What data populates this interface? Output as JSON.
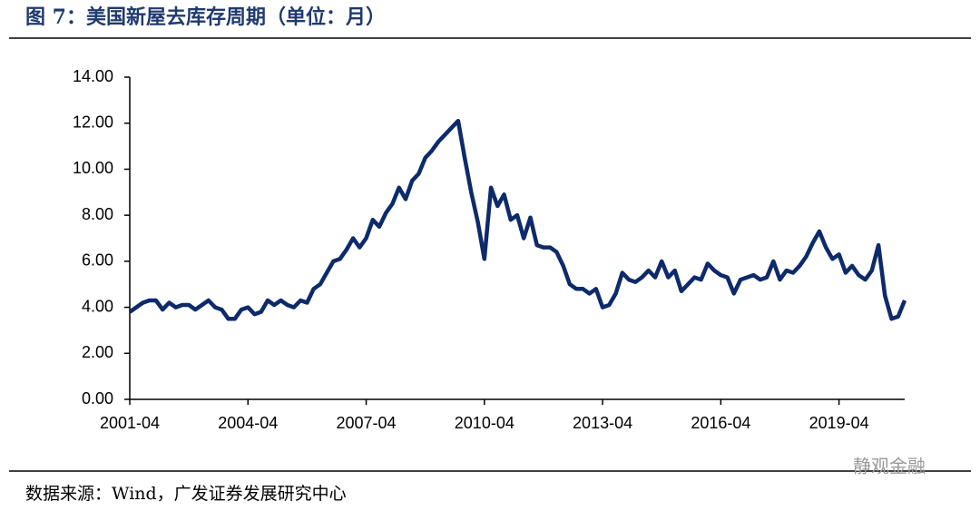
{
  "chart_data": {
    "type": "line",
    "title": "图 7：美国新屋去库存周期（单位：月）",
    "source": "数据来源：Wind，广发证券发展研究中心",
    "watermark": "静观金融",
    "x": [
      "2001-04",
      "2001-06",
      "2001-08",
      "2001-10",
      "2001-12",
      "2002-02",
      "2002-04",
      "2002-06",
      "2002-08",
      "2002-10",
      "2002-12",
      "2003-02",
      "2003-04",
      "2003-06",
      "2003-08",
      "2003-10",
      "2003-12",
      "2004-02",
      "2004-04",
      "2004-06",
      "2004-08",
      "2004-10",
      "2004-12",
      "2005-02",
      "2005-04",
      "2005-06",
      "2005-08",
      "2005-10",
      "2005-12",
      "2006-02",
      "2006-04",
      "2006-06",
      "2006-08",
      "2006-10",
      "2006-12",
      "2007-02",
      "2007-04",
      "2007-06",
      "2007-08",
      "2007-10",
      "2007-12",
      "2008-02",
      "2008-04",
      "2008-06",
      "2008-08",
      "2008-10",
      "2008-12",
      "2009-02",
      "2009-04",
      "2009-06",
      "2009-08",
      "2009-10",
      "2009-12",
      "2010-02",
      "2010-04",
      "2010-06",
      "2010-08",
      "2010-10",
      "2010-12",
      "2011-02",
      "2011-04",
      "2011-06",
      "2011-08",
      "2011-10",
      "2011-12",
      "2012-02",
      "2012-04",
      "2012-06",
      "2012-08",
      "2012-10",
      "2012-12",
      "2013-02",
      "2013-04",
      "2013-06",
      "2013-08",
      "2013-10",
      "2013-12",
      "2014-02",
      "2014-04",
      "2014-06",
      "2014-08",
      "2014-10",
      "2014-12",
      "2015-02",
      "2015-04",
      "2015-06",
      "2015-08",
      "2015-10",
      "2015-12",
      "2016-02",
      "2016-04",
      "2016-06",
      "2016-08",
      "2016-10",
      "2016-12",
      "2017-02",
      "2017-04",
      "2017-06",
      "2017-08",
      "2017-10",
      "2017-12",
      "2018-02",
      "2018-04",
      "2018-06",
      "2018-08",
      "2018-10",
      "2018-12",
      "2019-02",
      "2019-04",
      "2019-06",
      "2019-08",
      "2019-10",
      "2019-12",
      "2020-02",
      "2020-04",
      "2020-06",
      "2020-08",
      "2020-10",
      "2020-12"
    ],
    "series": [
      {
        "color": "#0d2a6b",
        "values": [
          3.8,
          4.0,
          4.2,
          4.3,
          4.3,
          3.9,
          4.2,
          4.0,
          4.1,
          4.1,
          3.9,
          4.1,
          4.3,
          4.0,
          3.9,
          3.5,
          3.5,
          3.9,
          4.0,
          3.7,
          3.8,
          4.3,
          4.1,
          4.3,
          4.1,
          4.0,
          4.3,
          4.2,
          4.8,
          5.0,
          5.5,
          6.0,
          6.1,
          6.5,
          7.0,
          6.6,
          7.0,
          7.8,
          7.5,
          8.1,
          8.5,
          9.2,
          8.7,
          9.5,
          9.8,
          10.5,
          10.8,
          11.2,
          11.5,
          11.8,
          12.1,
          10.5,
          9.0,
          7.7,
          6.1,
          9.2,
          8.4,
          8.9,
          7.8,
          8.0,
          7.0,
          7.9,
          6.7,
          6.6,
          6.6,
          6.4,
          5.8,
          5.0,
          4.8,
          4.8,
          4.6,
          4.8,
          4.0,
          4.1,
          4.6,
          5.5,
          5.2,
          5.1,
          5.3,
          5.6,
          5.3,
          6.0,
          5.3,
          5.6,
          4.7,
          5.0,
          5.3,
          5.2,
          5.9,
          5.6,
          5.4,
          5.3,
          4.6,
          5.2,
          5.3,
          5.4,
          5.2,
          5.3,
          6.0,
          5.2,
          5.6,
          5.5,
          5.8,
          6.2,
          6.8,
          7.3,
          6.6,
          6.1,
          6.3,
          5.5,
          5.8,
          5.4,
          5.2,
          5.6,
          6.7,
          4.5,
          3.5,
          3.6,
          4.3
        ]
      }
    ],
    "xlim": [
      "2001-04",
      "2020-12"
    ],
    "xticks": [
      "2001-04",
      "2004-04",
      "2007-04",
      "2010-04",
      "2013-04",
      "2016-04",
      "2019-04"
    ],
    "ylim": [
      0,
      14
    ],
    "yticks": [
      {
        "value": 0,
        "label": "0.00"
      },
      {
        "value": 2,
        "label": "2.00"
      },
      {
        "value": 4,
        "label": "4.00"
      },
      {
        "value": 6,
        "label": "6.00"
      },
      {
        "value": 8,
        "label": "8.00"
      },
      {
        "value": 10,
        "label": "10.00"
      },
      {
        "value": 12,
        "label": "12.00"
      },
      {
        "value": 14,
        "label": "14.00"
      }
    ],
    "grid": false
  }
}
